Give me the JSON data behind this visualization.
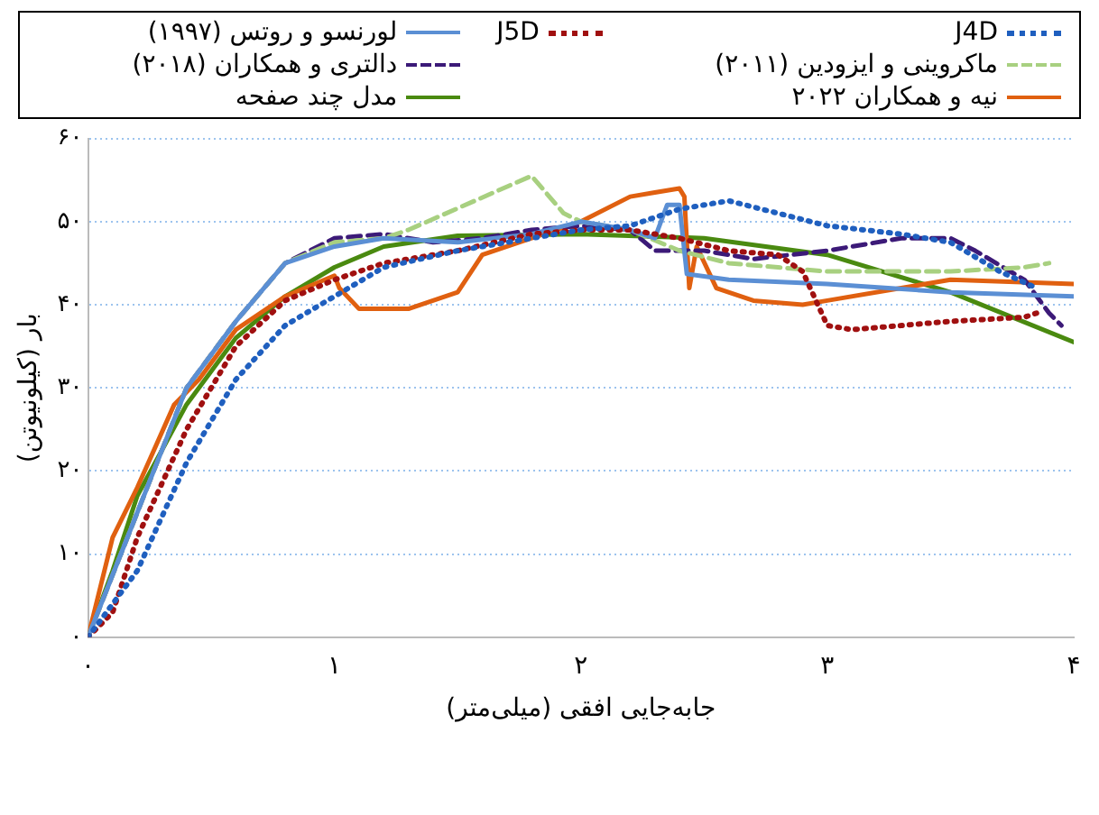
{
  "chart_data": {
    "type": "line",
    "xlabel": "جابه‌جایی افقی (میلی‌متر)",
    "ylabel": "بار (کیلونیوتن)",
    "legend": "top",
    "grid": "y",
    "xlim": [
      0,
      4
    ],
    "xticks": [
      {
        "value": 0,
        "label": "۰"
      },
      {
        "value": 1,
        "label": "۱"
      },
      {
        "value": 2,
        "label": "۲"
      },
      {
        "value": 3,
        "label": "۳"
      },
      {
        "value": 4,
        "label": "۴"
      }
    ],
    "ylim": [
      0,
      60
    ],
    "yticks": [
      {
        "value": 0,
        "label": "۰"
      },
      {
        "value": 10,
        "label": "۱۰"
      },
      {
        "value": 20,
        "label": "۲۰"
      },
      {
        "value": 30,
        "label": "۳۰"
      },
      {
        "value": 40,
        "label": "۴۰"
      },
      {
        "value": 50,
        "label": "۵۰"
      },
      {
        "value": 60,
        "label": "۶۰"
      }
    ],
    "series": [
      {
        "name": "J4D",
        "color": "#1f5fbf",
        "line_style": "dotted",
        "x": [
          0,
          0.2,
          0.4,
          0.6,
          0.8,
          1.0,
          1.2,
          1.5,
          1.8,
          2.0,
          2.2,
          2.4,
          2.6,
          2.8,
          3.0,
          3.3,
          3.5,
          3.7,
          3.85
        ],
        "values": [
          0,
          8,
          21,
          31,
          37.5,
          41,
          44.5,
          46.5,
          48,
          49,
          49.5,
          51.5,
          52.5,
          51,
          49.5,
          48.5,
          47.5,
          44,
          42
        ]
      },
      {
        "name": "J5D",
        "color": "#a01010",
        "line_style": "dotted",
        "x": [
          0,
          0.1,
          0.2,
          0.4,
          0.6,
          0.8,
          1.0,
          1.2,
          1.5,
          1.8,
          2.0,
          2.2,
          2.4,
          2.6,
          2.8,
          2.9,
          3.0,
          3.1,
          3.5,
          3.8,
          3.85
        ],
        "values": [
          0,
          3,
          12,
          25,
          35,
          40.5,
          43,
          45,
          46.5,
          48.5,
          49,
          49,
          48,
          46.5,
          46,
          44,
          37.5,
          37,
          38,
          38.5,
          39
        ]
      },
      {
        "name": "لورنسو و روتس (۱۹۹۷)",
        "color": "#5b8fd4",
        "line_style": "solid",
        "x": [
          0,
          0.2,
          0.4,
          0.6,
          0.8,
          1.0,
          1.2,
          1.5,
          1.8,
          2.0,
          2.2,
          2.3,
          2.35,
          2.4,
          2.43,
          2.6,
          3.0,
          3.5,
          4.0
        ],
        "values": [
          0,
          15,
          30,
          38,
          45,
          47,
          48,
          47.5,
          48.5,
          50,
          49,
          48,
          52,
          52,
          43.7,
          43,
          42.5,
          41.5,
          41
        ]
      },
      {
        "name": "ماکروینی و ایزودین (۲۰۱۱)",
        "color": "#a8d080",
        "line_style": "dashed",
        "x": [
          0,
          0.2,
          0.4,
          0.6,
          0.8,
          1.0,
          1.2,
          1.3,
          1.8,
          1.93,
          2.0,
          2.2,
          2.4,
          2.6,
          2.8,
          3.0,
          3.5,
          3.8,
          3.9
        ],
        "values": [
          0,
          15,
          30,
          38,
          45,
          47.5,
          48,
          49,
          55.5,
          51,
          50,
          49,
          46.5,
          45,
          44.5,
          44,
          44,
          44.5,
          45
        ]
      },
      {
        "name": "دالتری و همکاران (۲۰۱۸)",
        "color": "#3c1a78",
        "line_style": "dashed",
        "x": [
          0,
          0.2,
          0.4,
          0.6,
          0.8,
          1.0,
          1.2,
          1.4,
          1.6,
          1.8,
          2.0,
          2.2,
          2.3,
          2.5,
          2.7,
          3.0,
          3.3,
          3.5,
          3.6,
          3.8,
          3.9,
          3.95
        ],
        "values": [
          0,
          15,
          30,
          38,
          45,
          48,
          48.5,
          47.5,
          48,
          49,
          49.5,
          49,
          46.5,
          46.5,
          45.5,
          46.5,
          48,
          48,
          46.5,
          43,
          39,
          37.5
        ]
      },
      {
        "name": "نیه و همکاران ۲۰۲۲",
        "color": "#e06010",
        "line_style": "solid",
        "x": [
          0,
          0.1,
          0.2,
          0.35,
          0.45,
          0.6,
          0.8,
          1.0,
          1.02,
          1.1,
          1.3,
          1.5,
          1.6,
          1.7,
          1.8,
          2.0,
          2.2,
          2.3,
          2.4,
          2.42,
          2.44,
          2.47,
          2.55,
          2.7,
          2.9,
          3.0,
          3.3,
          3.5,
          4.0
        ],
        "values": [
          0,
          12,
          18,
          28,
          31,
          37,
          41,
          43.5,
          42,
          39.5,
          39.5,
          41.5,
          46,
          47,
          48,
          50,
          53,
          53.5,
          54,
          53,
          42,
          47,
          42,
          40.5,
          40,
          40.5,
          42,
          43,
          42.5
        ]
      },
      {
        "name": "مدل چند صفحه",
        "color": "#4a8a10",
        "line_style": "solid",
        "x": [
          0,
          0.1,
          0.2,
          0.4,
          0.6,
          0.8,
          1.0,
          1.2,
          1.5,
          2.0,
          2.5,
          3.0,
          3.5,
          4.0
        ],
        "values": [
          0,
          8,
          17,
          28,
          36,
          41,
          44.5,
          47,
          48.3,
          48.5,
          48,
          46,
          41.5,
          35.5
        ]
      }
    ]
  }
}
